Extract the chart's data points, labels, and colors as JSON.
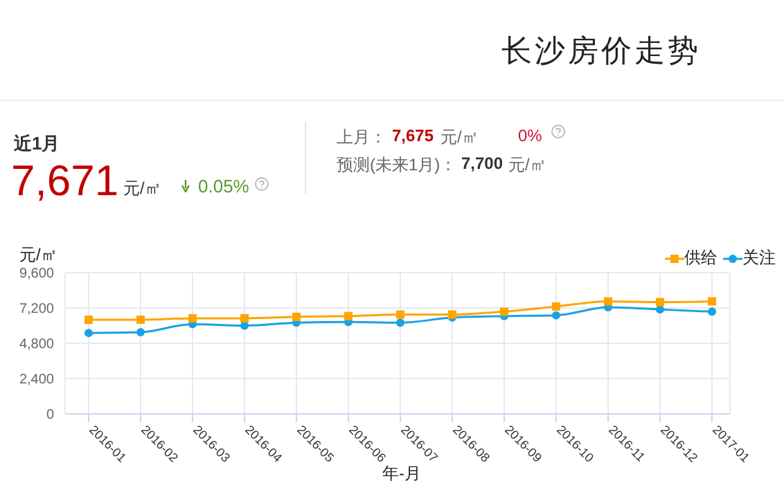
{
  "chart_data": {
    "type": "line",
    "title": "长沙房价走势",
    "xlabel": "年-月",
    "ylabel": "元/㎡",
    "annotations": [
      "近1月",
      "7,671",
      "元/㎡",
      "0.05%",
      "上月：",
      "7,675",
      "元/㎡",
      "0%",
      "预测(未来1月)：",
      "7,700",
      "元/㎡"
    ],
    "categories": [
      "2016-01",
      "2016-02",
      "2016-03",
      "2016-04",
      "2016-05",
      "2016-06",
      "2016-07",
      "2016-08",
      "2016-09",
      "2016-10",
      "2016-11",
      "2016-12",
      "2017-01"
    ],
    "series": [
      {
        "name": "供给",
        "color": "#ffa500",
        "marker": "square",
        "values": [
          6400,
          6400,
          6500,
          6500,
          6600,
          6650,
          6750,
          6750,
          6950,
          7300,
          7650,
          7600,
          7650
        ]
      },
      {
        "name": "关注",
        "color": "#1ba1e2",
        "marker": "circle",
        "values": [
          5500,
          5550,
          6100,
          6000,
          6200,
          6250,
          6200,
          6550,
          6650,
          6700,
          7250,
          7100,
          6950
        ]
      }
    ],
    "ylim": [
      0,
      9600
    ],
    "yticks": [
      0,
      {
        "value": 2400,
        "label": "2,400"
      },
      {
        "value": 4800,
        "label": "4,800"
      },
      {
        "value": 7200,
        "label": "7,200"
      },
      {
        "value": 9600,
        "label": "9,600"
      }
    ],
    "grid": true,
    "legend": "top right"
  }
}
